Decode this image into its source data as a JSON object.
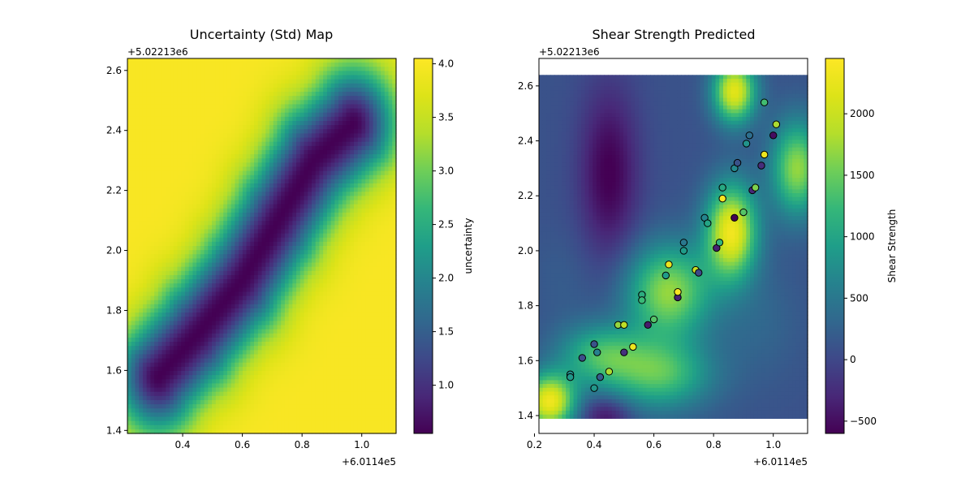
{
  "chart_data": [
    {
      "type": "heatmap",
      "title": "Uncertainty (Std) Map",
      "xlim": [
        0.215,
        1.115
      ],
      "ylim": [
        1.39,
        2.64
      ],
      "x_ticks": [
        0.4,
        0.6,
        0.8,
        1.0
      ],
      "x_tick_labels": [
        "0.4",
        "0.6",
        "0.8",
        "1.0"
      ],
      "x_offset_label": "+6.0114e5",
      "y_ticks": [
        1.4,
        1.6,
        1.8,
        2.0,
        2.2,
        2.4,
        2.6
      ],
      "y_tick_labels": [
        "1.4",
        "1.6",
        "1.8",
        "2.0",
        "2.2",
        "2.4",
        "2.6"
      ],
      "y_offset_label": "+5.02213e6",
      "colormap": "viridis",
      "colorbar": {
        "label": "uncertainty",
        "range": [
          0.55,
          4.05
        ],
        "ticks": [
          1.0,
          1.5,
          2.0,
          2.5,
          3.0,
          3.5,
          4.0
        ],
        "tick_labels": [
          "1.0",
          "1.5",
          "2.0",
          "2.5",
          "3.0",
          "3.5",
          "4.0"
        ]
      },
      "field_description": {
        "low_band_centerline_x": [
          0.32,
          0.45,
          0.6,
          0.72,
          0.84,
          0.97
        ],
        "low_band_centerline_y": [
          1.58,
          1.72,
          1.9,
          2.1,
          2.3,
          2.42
        ],
        "min_value": 0.55,
        "max_value": 4.0
      }
    },
    {
      "type": "scatter",
      "title": "Shear Strength Predicted",
      "xlim": [
        0.215,
        1.115
      ],
      "ylim": [
        1.335,
        2.7
      ],
      "x_ticks": [
        0.2,
        0.4,
        0.6,
        0.8,
        1.0
      ],
      "x_tick_labels": [
        "0.2",
        "0.4",
        "0.6",
        "0.8",
        "1.0"
      ],
      "x_offset_label": "+6.0114e5",
      "y_ticks": [
        1.4,
        1.6,
        1.8,
        2.0,
        2.2,
        2.4,
        2.6
      ],
      "y_tick_labels": [
        "1.4",
        "1.6",
        "1.8",
        "2.0",
        "2.2",
        "2.4",
        "2.6"
      ],
      "y_offset_label": "+5.02213e6",
      "colormap": "viridis",
      "background_heatmap": {
        "x_range": [
          0.215,
          1.115
        ],
        "y_range": [
          1.39,
          2.64
        ],
        "base_value": 100,
        "bumps": [
          {
            "x": 0.45,
            "y": 2.28,
            "value": -620,
            "sx": 0.07,
            "sy": 0.22
          },
          {
            "x": 0.86,
            "y": 2.07,
            "value": 2300,
            "sx": 0.06,
            "sy": 0.12
          },
          {
            "x": 0.87,
            "y": 2.58,
            "value": 2200,
            "sx": 0.05,
            "sy": 0.08
          },
          {
            "x": 0.65,
            "y": 1.85,
            "value": 1700,
            "sx": 0.1,
            "sy": 0.12
          },
          {
            "x": 0.42,
            "y": 1.62,
            "value": 1200,
            "sx": 0.1,
            "sy": 0.08
          },
          {
            "x": 0.25,
            "y": 1.45,
            "value": 2300,
            "sx": 0.06,
            "sy": 0.07
          },
          {
            "x": 0.62,
            "y": 1.55,
            "value": 1350,
            "sx": 0.12,
            "sy": 0.09
          },
          {
            "x": 0.44,
            "y": 1.4,
            "value": -500,
            "sx": 0.06,
            "sy": 0.05
          },
          {
            "x": 1.08,
            "y": 2.3,
            "value": 1700,
            "sx": 0.06,
            "sy": 0.12
          },
          {
            "x": 0.95,
            "y": 1.75,
            "value": 300,
            "sx": 0.1,
            "sy": 0.15
          },
          {
            "x": 0.3,
            "y": 1.9,
            "value": 200,
            "sx": 0.08,
            "sy": 0.12
          }
        ]
      },
      "points": {
        "x": [
          0.32,
          0.32,
          0.36,
          0.4,
          0.4,
          0.41,
          0.42,
          0.45,
          0.48,
          0.5,
          0.5,
          0.53,
          0.56,
          0.56,
          0.58,
          0.6,
          0.64,
          0.65,
          0.68,
          0.68,
          0.7,
          0.7,
          0.74,
          0.75,
          0.77,
          0.78,
          0.81,
          0.82,
          0.83,
          0.83,
          0.87,
          0.87,
          0.88,
          0.9,
          0.91,
          0.92,
          0.93,
          0.94,
          0.96,
          0.97,
          0.97,
          1.0,
          1.01
        ],
        "y": [
          1.55,
          1.54,
          1.61,
          1.5,
          1.66,
          1.63,
          1.54,
          1.56,
          1.73,
          1.73,
          1.63,
          1.65,
          1.84,
          1.82,
          1.73,
          1.75,
          1.91,
          1.95,
          1.83,
          1.85,
          2.0,
          2.03,
          1.93,
          1.92,
          2.12,
          2.1,
          2.01,
          2.03,
          2.19,
          2.23,
          2.12,
          2.3,
          2.32,
          2.14,
          2.39,
          2.42,
          2.22,
          2.23,
          2.31,
          2.54,
          2.35,
          2.42,
          2.46
        ],
        "values": [
          750,
          850,
          50,
          850,
          100,
          600,
          200,
          1800,
          1700,
          1900,
          -200,
          2300,
          1100,
          1250,
          -400,
          1400,
          900,
          2300,
          -350,
          2400,
          900,
          500,
          2000,
          0,
          650,
          1000,
          -350,
          1200,
          2400,
          1050,
          -600,
          700,
          100,
          1400,
          800,
          400,
          -300,
          1600,
          -250,
          1300,
          2300,
          -500,
          1800
        ]
      },
      "colorbar": {
        "label": "Shear Strength",
        "range": [
          -600,
          2450
        ],
        "ticks": [
          -500,
          0,
          500,
          1000,
          1500,
          2000
        ],
        "tick_labels": [
          "−500",
          "0",
          "500",
          "1000",
          "1500",
          "2000"
        ]
      }
    }
  ]
}
